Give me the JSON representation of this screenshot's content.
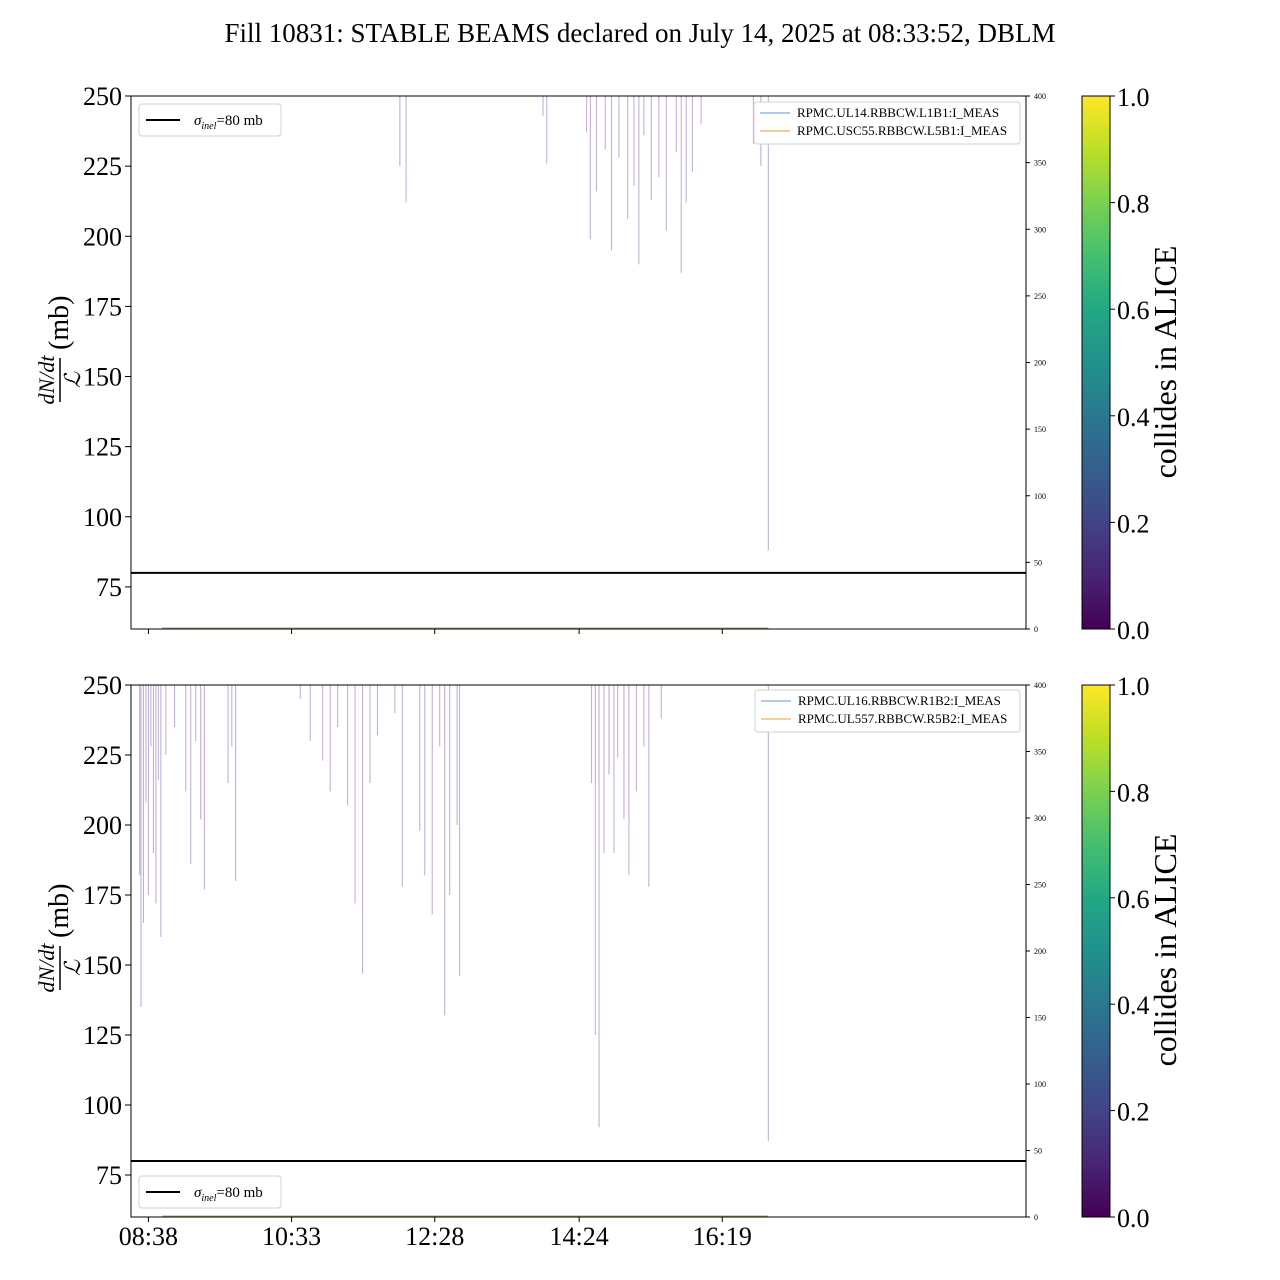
{
  "figure": {
    "title": "Fill 10831: STABLE BEAMS declared on July 14, 2025 at 08:33:52, DBLM"
  },
  "chart_data": [
    {
      "type": "line",
      "panel": "top",
      "ylabel_num": "dN/dt",
      "ylabel_den": "ℒ",
      "ylabel_unit": "(mb)",
      "ylim": [
        60,
        250
      ],
      "yticks": [
        "250",
        "225",
        "200",
        "175",
        "150",
        "125",
        "100",
        "75"
      ],
      "ytick_values": [
        250,
        225,
        200,
        175,
        150,
        125,
        100,
        75
      ],
      "y2lim": [
        0,
        400
      ],
      "y2ticks": [
        "400",
        "350",
        "300",
        "250",
        "200",
        "150",
        "100",
        "50",
        "0"
      ],
      "y2tick_values": [
        400,
        350,
        300,
        250,
        200,
        150,
        100,
        50,
        0
      ],
      "xlim_minutes": [
        504,
        1223
      ],
      "xtick_minutes": [
        518,
        633,
        748,
        864,
        979
      ],
      "reference_line": {
        "value": 80,
        "label_sym": "σ",
        "label_sub": "inel",
        "label_rest": "=80 mb"
      },
      "legend": [
        {
          "name": "RPMC.UL14.RBBCW.L1B1:I_MEAS",
          "color": "#5b9bd5"
        },
        {
          "name": "RPMC.USC55.RBBCW.L5B1:I_MEAS",
          "color": "#e0a030"
        }
      ],
      "spikes": [
        [
          720,
          225
        ],
        [
          725,
          212
        ],
        [
          835,
          243
        ],
        [
          838,
          226
        ],
        [
          870,
          237
        ],
        [
          873,
          199
        ],
        [
          878,
          216
        ],
        [
          885,
          231
        ],
        [
          890,
          195
        ],
        [
          896,
          228
        ],
        [
          903,
          206
        ],
        [
          908,
          218
        ],
        [
          912,
          190
        ],
        [
          916,
          236
        ],
        [
          922,
          213
        ],
        [
          928,
          221
        ],
        [
          934,
          202
        ],
        [
          942,
          230
        ],
        [
          946,
          187
        ],
        [
          950,
          212
        ],
        [
          955,
          223
        ],
        [
          962,
          240
        ],
        [
          1004,
          233
        ],
        [
          1010,
          225
        ],
        [
          1016,
          88
        ]
      ]
    },
    {
      "type": "line",
      "panel": "bottom",
      "ylabel_num": "dN/dt",
      "ylabel_den": "ℒ",
      "ylabel_unit": "(mb)",
      "ylim": [
        60,
        250
      ],
      "yticks": [
        "250",
        "225",
        "200",
        "175",
        "150",
        "125",
        "100",
        "75"
      ],
      "ytick_values": [
        250,
        225,
        200,
        175,
        150,
        125,
        100,
        75
      ],
      "y2lim": [
        0,
        400
      ],
      "y2ticks": [
        "400",
        "350",
        "300",
        "250",
        "200",
        "150",
        "100",
        "50",
        "0"
      ],
      "y2tick_values": [
        400,
        350,
        300,
        250,
        200,
        150,
        100,
        50,
        0
      ],
      "xlim_minutes": [
        504,
        1223
      ],
      "xtick_minutes": [
        518,
        633,
        748,
        864,
        979
      ],
      "xticks": [
        "08:38",
        "10:33",
        "12:28",
        "14:24",
        "16:19"
      ],
      "reference_line": {
        "value": 80,
        "label_sym": "σ",
        "label_sub": "inel",
        "label_rest": "=80 mb"
      },
      "legend": [
        {
          "name": "RPMC.UL16.RBBCW.R1B2:I_MEAS",
          "color": "#5b9bd5"
        },
        {
          "name": "RPMC.UL557.RBBCW.R5B2:I_MEAS",
          "color": "#e0a030"
        }
      ],
      "spikes": [
        [
          511,
          182
        ],
        [
          512,
          135
        ],
        [
          514,
          165
        ],
        [
          516,
          208
        ],
        [
          518,
          175
        ],
        [
          520,
          228
        ],
        [
          522,
          190
        ],
        [
          524,
          172
        ],
        [
          526,
          216
        ],
        [
          528,
          160
        ],
        [
          532,
          225
        ],
        [
          539,
          235
        ],
        [
          548,
          212
        ],
        [
          552,
          186
        ],
        [
          556,
          230
        ],
        [
          560,
          202
        ],
        [
          563,
          177
        ],
        [
          582,
          215
        ],
        [
          585,
          228
        ],
        [
          588,
          180
        ],
        [
          640,
          245
        ],
        [
          648,
          230
        ],
        [
          658,
          223
        ],
        [
          664,
          212
        ],
        [
          670,
          235
        ],
        [
          678,
          207
        ],
        [
          684,
          172
        ],
        [
          690,
          147
        ],
        [
          696,
          215
        ],
        [
          702,
          232
        ],
        [
          716,
          240
        ],
        [
          722,
          178
        ],
        [
          736,
          198
        ],
        [
          740,
          182
        ],
        [
          746,
          168
        ],
        [
          752,
          228
        ],
        [
          756,
          132
        ],
        [
          760,
          175
        ],
        [
          766,
          200
        ],
        [
          768,
          146
        ],
        [
          874,
          215
        ],
        [
          877,
          125
        ],
        [
          880,
          92
        ],
        [
          884,
          190
        ],
        [
          888,
          218
        ],
        [
          892,
          190
        ],
        [
          895,
          224
        ],
        [
          900,
          202
        ],
        [
          904,
          182
        ],
        [
          910,
          212
        ],
        [
          916,
          228
        ],
        [
          920,
          178
        ],
        [
          930,
          238
        ],
        [
          1016,
          87
        ]
      ]
    },
    {
      "type": "heatmap",
      "panel": "top-colorbar",
      "label": "collides in ALICE",
      "colormap": "viridis",
      "ticks": [
        "0.0",
        "0.2",
        "0.4",
        "0.6",
        "0.8",
        "1.0"
      ],
      "range": [
        0,
        1
      ]
    },
    {
      "type": "heatmap",
      "panel": "bottom-colorbar",
      "label": "collides in ALICE",
      "colormap": "viridis",
      "ticks": [
        "0.0",
        "0.2",
        "0.4",
        "0.6",
        "0.8",
        "1.0"
      ],
      "range": [
        0,
        1
      ]
    }
  ],
  "colors": {
    "spike": "#7b4f9e",
    "bottom_trace_blue": "#5b9bd5",
    "bottom_trace_orange": "#e0a030"
  }
}
